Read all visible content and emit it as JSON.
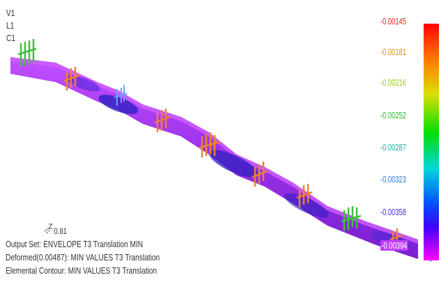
{
  "view_labels": {
    "v": "V1",
    "l": "L1",
    "c": "C1"
  },
  "legend": {
    "values": [
      "-0.00145",
      "-0.00181",
      "-0.00216",
      "-0.00252",
      "-0.00287",
      "-0.00323",
      "-0.00358",
      "-0.00394"
    ],
    "colors": [
      "#e8201a",
      "#e88a10",
      "#9ac818",
      "#28b828",
      "#18b0a8",
      "#2a7ae0",
      "#3a28d8",
      "#b010c0"
    ]
  },
  "triad": {
    "axis_label": "Z",
    "angle_text": "0.81"
  },
  "info": {
    "output_set": "Output Set: ENVELOPE T3 Translation MIN",
    "deformed": "Deformed(0.00487): MIN VALUES T3 Translation",
    "contour": "Elemental Contour: MIN VALUES T3 Translation"
  },
  "colors": {
    "beam_purple": "#a030f0",
    "beam_blue": "#3a20c8",
    "beam_magenta": "#d040ff",
    "support_orange": "#f08030",
    "support_green": "#40c040",
    "support_cyan": "#60a8ff"
  }
}
